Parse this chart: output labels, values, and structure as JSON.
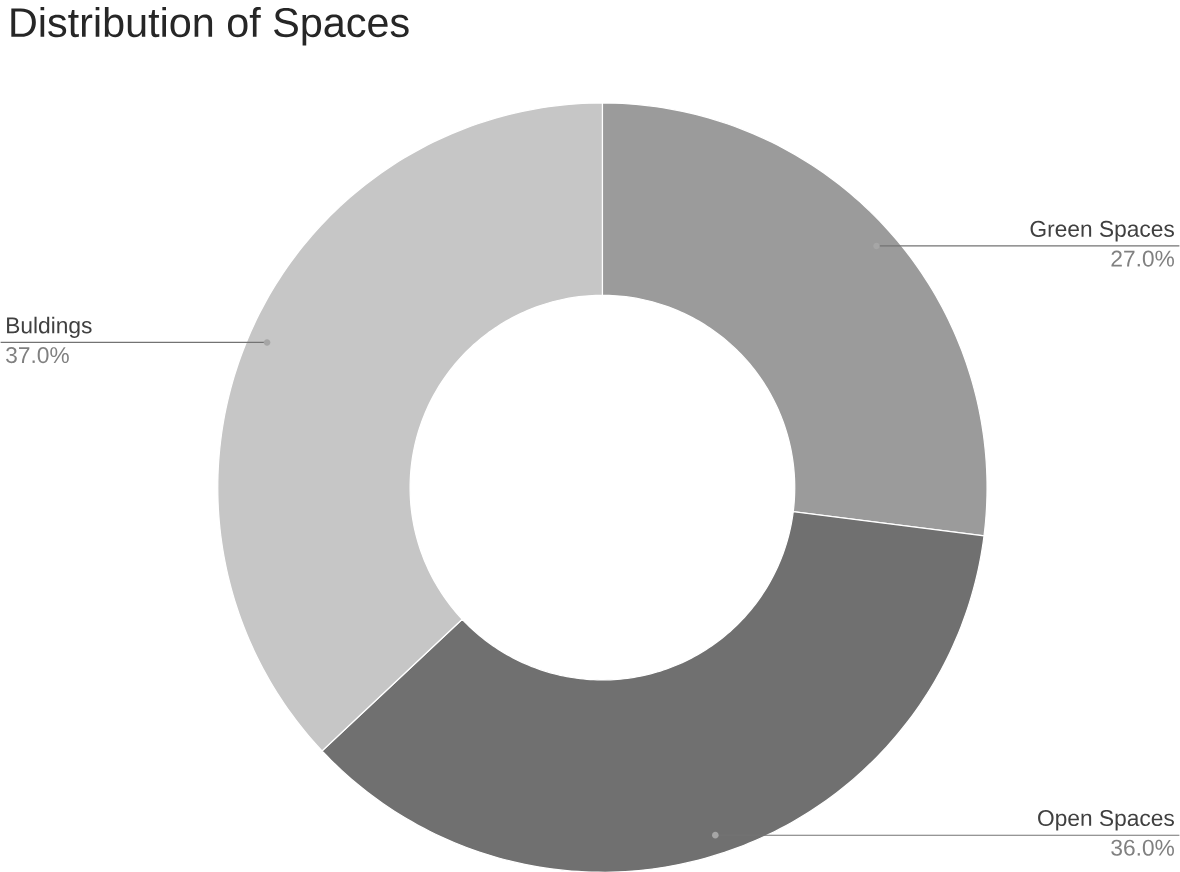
{
  "chart_data": {
    "type": "donut",
    "title": "Distribution of Spaces",
    "categories": [
      "Green Spaces",
      "Open Spaces",
      "Buldings"
    ],
    "values": [
      27,
      36,
      37
    ],
    "colors": [
      "#9b9b9b",
      "#707070",
      "#c6c6c6"
    ],
    "value_labels": [
      "27.0%",
      "36.0%",
      "37.0%"
    ]
  }
}
